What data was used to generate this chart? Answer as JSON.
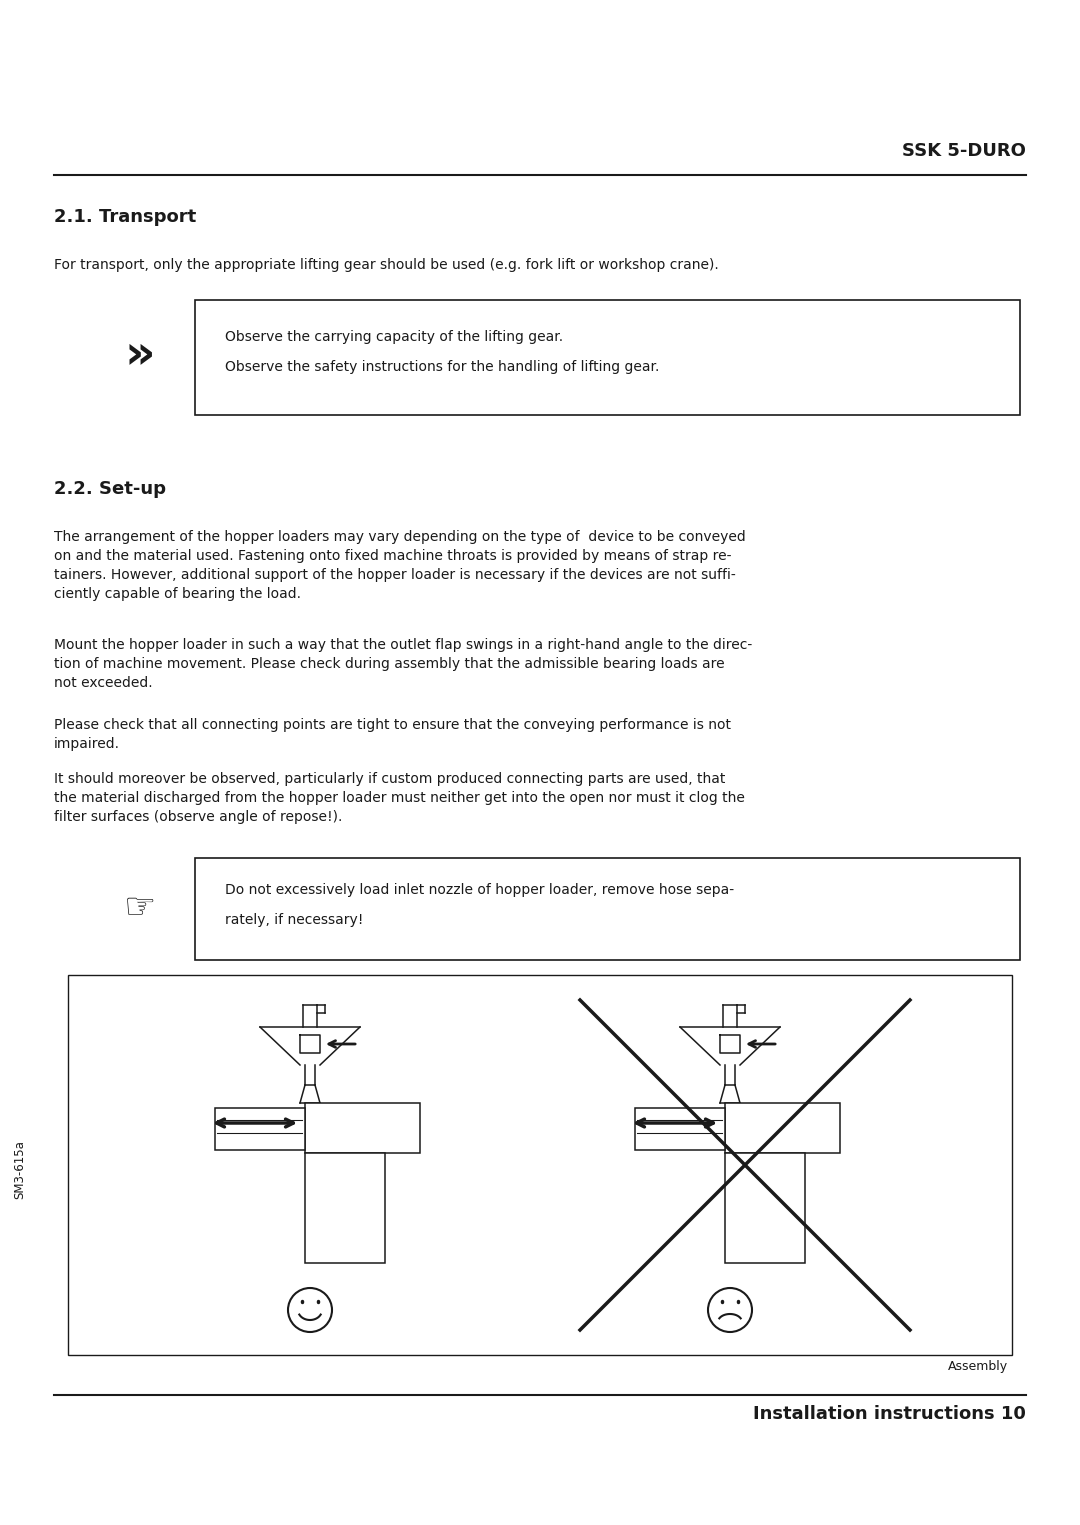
{
  "bg_color": "#ffffff",
  "text_color": "#1a1a1a",
  "header_text": "SSK 5-DURO",
  "section1_title": "2.1. Transport",
  "section1_body": "For transport, only the appropriate lifting gear should be used (e.g. fork lift or workshop crane).",
  "note1_line1": "Observe the carrying capacity of the lifting gear.",
  "note1_line2": "Observe the safety instructions for the handling of lifting gear.",
  "section2_title": "2.2. Set-up",
  "section2_para1": "The arrangement of the hopper loaders may vary depending on the type of  device to be conveyed\non and the material used. Fastening onto fixed machine throats is provided by means of strap re-\ntainers. However, additional support of the hopper loader is necessary if the devices are not suffi-\nciently capable of bearing the load.",
  "section2_para2": "Mount the hopper loader in such a way that the outlet flap swings in a right-hand angle to the direc-\ntion of machine movement. Please check during assembly that the admissible bearing loads are\nnot exceeded.",
  "section2_para3": "Please check that all connecting points are tight to ensure that the conveying performance is not\nimpaired.",
  "section2_para4": "It should moreover be observed, particularly if custom produced connecting parts are used, that\nthe material discharged from the hopper loader must neither get into the open nor must it clog the\nfilter surfaces (observe angle of repose!).",
  "note2_line1": "Do not excessively load inlet nozzle of hopper loader, remove hose sepa-",
  "note2_line2": "rately, if necessary!",
  "footer_left": "SM3-615a",
  "footer_caption": "Assembly",
  "footer_right": "Installation instructions 10"
}
